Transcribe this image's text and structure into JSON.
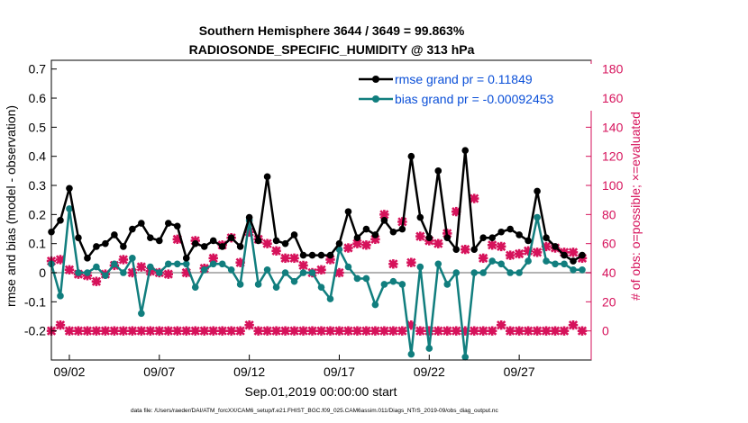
{
  "chart_data": {
    "type": "line",
    "title": "Southern Hemisphere 3644 / 3649 = 99.863%",
    "subtitle": "RADIOSONDE_SPECIFIC_HUMIDITY @ 313 hPa",
    "xlabel": "Sep.01,2019 00:00:00 start",
    "ylabel_left": "rmse and bias (model - observation)",
    "ylabel_right": "# of obs: o=possible; ×=evaluated",
    "footnote": "data file: /Users/raeder/DAI/ATM_forcXX/CAM6_setup/f.e21.FHIST_BGC.f09_025.CAM6assim.011/Diags_NTrS_2019-09/obs_diag_output.nc",
    "x_ticks": [
      "09/02",
      "09/07",
      "09/12",
      "09/17",
      "09/22",
      "09/27"
    ],
    "x_tick_days": [
      2,
      7,
      12,
      17,
      22,
      27
    ],
    "xlim_days": [
      1.0,
      31.0
    ],
    "ylim_left": [
      -0.3,
      0.73
    ],
    "yticks_left": [
      "-0.2",
      "-0.1",
      "0",
      "0.1",
      "0.2",
      "0.3",
      "0.4",
      "0.5",
      "0.6",
      "0.7"
    ],
    "ylim_right": [
      -20,
      186
    ],
    "yticks_right": [
      "0",
      "20",
      "40",
      "60",
      "80",
      "100",
      "120",
      "140",
      "160",
      "180"
    ],
    "zero_line": true,
    "legend_placement": "top-right",
    "colors": {
      "rmse": "#000000",
      "bias": "#117e7e",
      "obs": "#d6125b",
      "zero_line": "#b3b3b3",
      "right_axis": "#d6125b",
      "legend_text": "#0a4fd8"
    },
    "series": [
      {
        "name": "rmse grand pr = 0.11849",
        "x": [
          1.0,
          1.5,
          2.0,
          2.5,
          3.0,
          3.5,
          4.0,
          4.5,
          5.0,
          5.5,
          6.0,
          6.5,
          7.0,
          7.5,
          8.0,
          8.5,
          9.0,
          9.5,
          10.0,
          10.5,
          11.0,
          11.5,
          12.0,
          12.5,
          13.0,
          13.5,
          14.0,
          14.5,
          15.0,
          15.5,
          16.0,
          16.5,
          17.0,
          17.5,
          18.0,
          18.5,
          19.0,
          19.5,
          20.0,
          20.5,
          21.0,
          21.5,
          22.0,
          22.5,
          23.0,
          23.5,
          24.0,
          24.5,
          25.0,
          25.5,
          26.0,
          26.5,
          27.0,
          27.5,
          28.0,
          28.5,
          29.0,
          29.5,
          30.0,
          30.5
        ],
        "values": [
          0.14,
          0.18,
          0.29,
          0.12,
          0.05,
          0.09,
          0.1,
          0.13,
          0.09,
          0.15,
          0.17,
          0.12,
          0.11,
          0.17,
          0.16,
          0.05,
          0.1,
          0.09,
          0.11,
          0.09,
          0.12,
          0.09,
          0.19,
          0.11,
          0.33,
          0.11,
          0.1,
          0.13,
          0.06,
          0.06,
          0.06,
          0.06,
          0.1,
          0.21,
          0.12,
          0.15,
          0.13,
          0.18,
          0.14,
          0.15,
          0.4,
          0.19,
          0.12,
          0.35,
          0.12,
          0.08,
          0.42,
          0.08,
          0.12,
          0.12,
          0.14,
          0.15,
          0.13,
          0.11,
          0.28,
          0.12,
          0.09,
          0.06,
          0.04,
          0.06
        ]
      },
      {
        "name": "bias grand pr = -0.00092453",
        "x": [
          1.0,
          1.5,
          2.0,
          2.5,
          3.0,
          3.5,
          4.0,
          4.5,
          5.0,
          5.5,
          6.0,
          6.5,
          7.0,
          7.5,
          8.0,
          8.5,
          9.0,
          9.5,
          10.0,
          10.5,
          11.0,
          11.5,
          12.0,
          12.5,
          13.0,
          13.5,
          14.0,
          14.5,
          15.0,
          15.5,
          16.0,
          16.5,
          17.0,
          17.5,
          18.0,
          18.5,
          19.0,
          19.5,
          20.0,
          20.5,
          21.0,
          21.5,
          22.0,
          22.5,
          23.0,
          23.5,
          24.0,
          24.5,
          25.0,
          25.5,
          26.0,
          26.5,
          27.0,
          27.5,
          28.0,
          28.5,
          29.0,
          29.5,
          30.0,
          30.5
        ],
        "values": [
          0.03,
          -0.08,
          0.22,
          0.0,
          0.0,
          0.02,
          -0.01,
          0.03,
          0.0,
          0.05,
          -0.14,
          0.02,
          0.0,
          0.03,
          0.03,
          0.03,
          -0.05,
          0.01,
          0.03,
          0.03,
          0.01,
          -0.04,
          0.18,
          -0.04,
          0.01,
          -0.05,
          0.0,
          -0.03,
          0.0,
          0.0,
          -0.05,
          -0.09,
          0.08,
          0.02,
          -0.02,
          -0.02,
          -0.11,
          -0.04,
          -0.03,
          -0.04,
          -0.28,
          0.02,
          -0.26,
          0.03,
          -0.04,
          0.0,
          -0.29,
          0.0,
          0.0,
          0.04,
          0.03,
          0.0,
          0.0,
          0.04,
          0.19,
          0.04,
          0.03,
          0.03,
          0.01,
          0.01
        ]
      },
      {
        "name": "evaluated",
        "x": [
          1.0,
          1.5,
          2.0,
          2.5,
          3.0,
          3.5,
          4.0,
          4.5,
          5.0,
          5.5,
          6.0,
          6.5,
          7.0,
          7.5,
          8.0,
          8.5,
          9.0,
          9.5,
          10.0,
          10.5,
          11.0,
          11.5,
          12.0,
          12.5,
          13.0,
          13.5,
          14.0,
          14.5,
          15.0,
          15.5,
          16.0,
          16.5,
          17.0,
          17.5,
          18.0,
          18.5,
          19.0,
          19.5,
          20.0,
          20.5,
          21.0,
          21.5,
          22.0,
          22.5,
          23.0,
          23.5,
          24.0,
          24.5,
          25.0,
          25.5,
          26.0,
          26.5,
          27.0,
          27.5,
          28.0,
          28.5,
          29.0,
          29.5,
          30.0,
          30.5
        ],
        "values": [
          48,
          49,
          42,
          39,
          38,
          34,
          39,
          45,
          49,
          40,
          44,
          41,
          40,
          39,
          63,
          40,
          62,
          43,
          50,
          59,
          64,
          47,
          68,
          63,
          60,
          55,
          50,
          50,
          45,
          40,
          42,
          49,
          40,
          57,
          60,
          59,
          63,
          80,
          46,
          75,
          47,
          65,
          62,
          60,
          67,
          82,
          56,
          91,
          50,
          59,
          58,
          52,
          53,
          55,
          54,
          58,
          57,
          54,
          54,
          50
        ]
      },
      {
        "name": "possible",
        "x": [
          1.0,
          1.5,
          2.0,
          2.5,
          3.0,
          3.5,
          4.0,
          4.5,
          5.0,
          5.5,
          6.0,
          6.5,
          7.0,
          7.5,
          8.0,
          8.5,
          9.0,
          9.5,
          10.0,
          10.5,
          11.0,
          11.5,
          12.0,
          12.5,
          13.0,
          13.5,
          14.0,
          14.5,
          15.0,
          15.5,
          16.0,
          16.5,
          17.0,
          17.5,
          18.0,
          18.5,
          19.0,
          19.5,
          20.0,
          20.5,
          21.0,
          21.5,
          22.0,
          22.5,
          23.0,
          23.5,
          24.0,
          24.5,
          25.0,
          25.5,
          26.0,
          26.5,
          27.0,
          27.5,
          28.0,
          28.5,
          29.0,
          29.5,
          30.0,
          30.5
        ],
        "values": [
          0,
          4,
          0,
          0,
          0,
          0,
          0,
          0,
          0,
          0,
          0,
          0,
          0,
          0,
          0,
          0,
          0,
          0,
          0,
          0,
          0,
          0,
          4,
          0,
          0,
          0,
          0,
          0,
          0,
          0,
          0,
          0,
          0,
          0,
          0,
          0,
          0,
          0,
          0,
          0,
          4,
          0,
          0,
          0,
          0,
          0,
          0,
          0,
          0,
          0,
          4,
          0,
          0,
          0,
          0,
          0,
          0,
          0,
          4,
          0
        ]
      }
    ]
  }
}
